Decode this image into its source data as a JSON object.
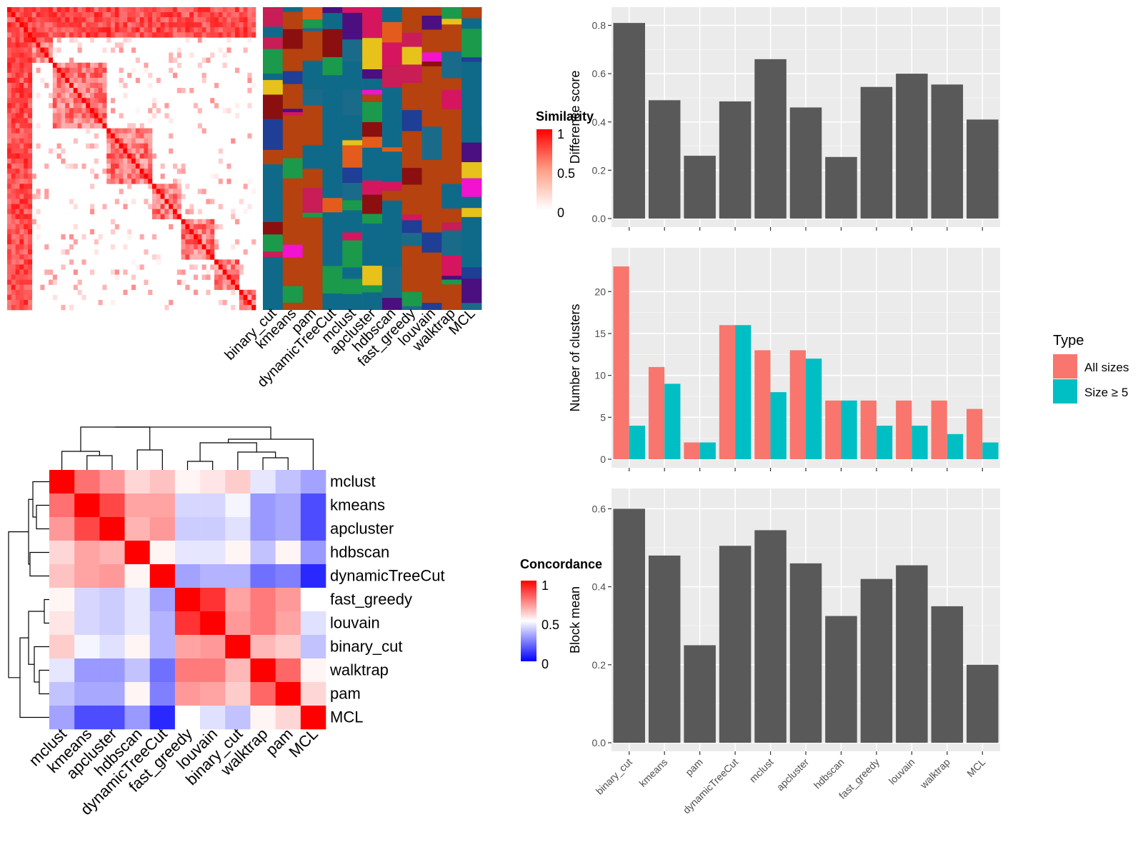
{
  "similarity_heatmap": {
    "legend_title": "Similarity",
    "legend_ticks": [
      "1",
      "0.5",
      "0"
    ]
  },
  "cluster_assignment_panel": {
    "methods": [
      "binary_cut",
      "kmeans",
      "pam",
      "dynamicTreeCut",
      "mclust",
      "apcluster",
      "hdbscan",
      "fast_greedy",
      "louvain",
      "walktrap",
      "MCL"
    ]
  },
  "concordance_heatmap": {
    "legend_title": "Concordance",
    "legend_ticks": [
      "1",
      "0.5",
      "0"
    ],
    "row_labels": [
      "mclust",
      "kmeans",
      "apcluster",
      "hdbscan",
      "dynamicTreeCut",
      "fast_greedy",
      "louvain",
      "binary_cut",
      "walktrap",
      "pam",
      "MCL"
    ],
    "col_labels": [
      "mclust",
      "kmeans",
      "apcluster",
      "hdbscan",
      "dynamicTreeCut",
      "fast_greedy",
      "louvain",
      "binary_cut",
      "walktrap",
      "pam",
      "MCL"
    ],
    "values": [
      [
        1.0,
        0.78,
        0.7,
        0.58,
        0.62,
        0.52,
        0.55,
        0.6,
        0.45,
        0.38,
        0.32
      ],
      [
        0.78,
        1.0,
        0.86,
        0.68,
        0.68,
        0.42,
        0.42,
        0.48,
        0.3,
        0.33,
        0.15
      ],
      [
        0.7,
        0.86,
        1.0,
        0.65,
        0.7,
        0.4,
        0.4,
        0.44,
        0.3,
        0.33,
        0.15
      ],
      [
        0.58,
        0.68,
        0.65,
        1.0,
        0.52,
        0.45,
        0.45,
        0.52,
        0.38,
        0.52,
        0.3
      ],
      [
        0.62,
        0.68,
        0.7,
        0.52,
        1.0,
        0.32,
        0.35,
        0.35,
        0.22,
        0.25,
        0.08
      ],
      [
        0.52,
        0.42,
        0.4,
        0.45,
        0.32,
        1.0,
        0.9,
        0.68,
        0.76,
        0.7,
        0.5
      ],
      [
        0.55,
        0.42,
        0.4,
        0.45,
        0.35,
        0.9,
        1.0,
        0.7,
        0.76,
        0.68,
        0.44
      ],
      [
        0.6,
        0.48,
        0.44,
        0.52,
        0.35,
        0.68,
        0.7,
        1.0,
        0.64,
        0.6,
        0.38
      ],
      [
        0.45,
        0.3,
        0.3,
        0.38,
        0.22,
        0.76,
        0.76,
        0.64,
        1.0,
        0.8,
        0.52
      ],
      [
        0.38,
        0.33,
        0.33,
        0.52,
        0.25,
        0.7,
        0.68,
        0.6,
        0.8,
        1.0,
        0.58
      ],
      [
        0.32,
        0.15,
        0.15,
        0.3,
        0.08,
        0.5,
        0.44,
        0.38,
        0.52,
        0.58,
        1.0
      ]
    ]
  },
  "legend_type": {
    "title": "Type",
    "items": [
      {
        "label": "All sizes",
        "color": "#F8766D"
      },
      {
        "label": "Size ≥ 5",
        "color": "#00BFC4"
      }
    ]
  },
  "chart_data": [
    {
      "type": "bar",
      "categories": [
        "binary_cut",
        "kmeans",
        "pam",
        "dynamicTreeCut",
        "mclust",
        "apcluster",
        "hdbscan",
        "fast_greedy",
        "louvain",
        "walktrap",
        "MCL"
      ],
      "values": [
        0.81,
        0.49,
        0.26,
        0.485,
        0.66,
        0.46,
        0.255,
        0.545,
        0.6,
        0.555,
        0.41
      ],
      "ylabel": "Difference score",
      "ylim": [
        0,
        0.84
      ],
      "yticks": [
        "0.0",
        "0.2",
        "0.4",
        "0.6",
        "0.8"
      ],
      "color": "#595959"
    },
    {
      "type": "bar",
      "categories": [
        "binary_cut",
        "kmeans",
        "pam",
        "dynamicTreeCut",
        "mclust",
        "apcluster",
        "hdbscan",
        "fast_greedy",
        "louvain",
        "walktrap",
        "MCL"
      ],
      "series": [
        {
          "name": "All sizes",
          "values": [
            23,
            11,
            2,
            16,
            13,
            13,
            7,
            7,
            7,
            7,
            6
          ],
          "color": "#F8766D"
        },
        {
          "name": "Size ≥ 5",
          "values": [
            4,
            9,
            2,
            16,
            8,
            12,
            7,
            4,
            4,
            3,
            2
          ],
          "color": "#00BFC4"
        }
      ],
      "ylabel": "Number of clusters",
      "ylim": [
        0,
        24.2
      ],
      "yticks": [
        "0",
        "5",
        "10",
        "15",
        "20"
      ]
    },
    {
      "type": "bar",
      "categories": [
        "binary_cut",
        "kmeans",
        "pam",
        "dynamicTreeCut",
        "mclust",
        "apcluster",
        "hdbscan",
        "fast_greedy",
        "louvain",
        "walktrap",
        "MCL"
      ],
      "values": [
        0.6,
        0.48,
        0.25,
        0.505,
        0.545,
        0.46,
        0.325,
        0.42,
        0.455,
        0.35,
        0.2
      ],
      "ylabel": "Block mean",
      "ylim": [
        0,
        0.63
      ],
      "yticks": [
        "0.0",
        "0.2",
        "0.4",
        "0.6"
      ],
      "color": "#595959"
    }
  ]
}
